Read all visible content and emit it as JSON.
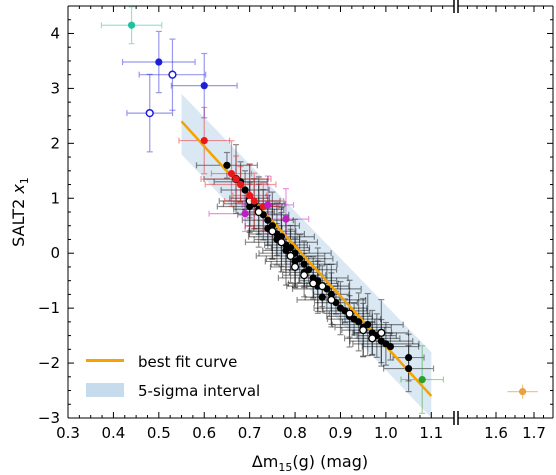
{
  "chart_data": {
    "type": "scatter",
    "xlabel": "Δm",
    "xlabel_sub": "15",
    "xlabel_rest": "(g) (mag)",
    "ylabel": "SALT2 ",
    "ylabel_var": "x",
    "ylabel_sub": "1",
    "xlim_main": [
      0.3,
      1.15
    ],
    "xlim_break": [
      1.5,
      1.75
    ],
    "ylim": [
      -3,
      4.5
    ],
    "x_ticks_main": [
      "0.3",
      "0.4",
      "0.5",
      "0.6",
      "0.7",
      "0.8",
      "0.9",
      "1.0",
      "1.1"
    ],
    "x_ticks_break": [
      "1.6",
      "1.7"
    ],
    "y_ticks": [
      "−3",
      "−2",
      "−1",
      "0",
      "1",
      "2",
      "3",
      "4"
    ],
    "legend_position": "lower-left",
    "fit_line": {
      "label": "best fit curve",
      "x": [
        0.55,
        1.1
      ],
      "y": [
        2.4,
        -2.6
      ],
      "color": "#f5a300"
    },
    "interval": {
      "label": "5-sigma interval",
      "color": "#c6dbec",
      "polygon": [
        [
          0.55,
          2.9
        ],
        [
          0.55,
          1.8
        ],
        [
          1.1,
          -3.0
        ],
        [
          1.1,
          -1.8
        ]
      ]
    },
    "series": [
      {
        "color": "#000000",
        "marker": "filled",
        "points": [
          [
            0.65,
            1.6
          ],
          [
            0.68,
            1.3
          ],
          [
            0.69,
            1.15
          ],
          [
            0.7,
            1.0
          ],
          [
            0.7,
            0.85
          ],
          [
            0.71,
            0.9
          ],
          [
            0.72,
            0.8
          ],
          [
            0.73,
            0.7
          ],
          [
            0.74,
            0.6
          ],
          [
            0.74,
            0.45
          ],
          [
            0.75,
            0.5
          ],
          [
            0.76,
            0.35
          ],
          [
            0.76,
            0.25
          ],
          [
            0.77,
            0.3
          ],
          [
            0.78,
            0.15
          ],
          [
            0.78,
            0.05
          ],
          [
            0.79,
            0.1
          ],
          [
            0.8,
            0.0
          ],
          [
            0.8,
            -0.15
          ],
          [
            0.81,
            -0.1
          ],
          [
            0.82,
            -0.2
          ],
          [
            0.82,
            -0.35
          ],
          [
            0.83,
            -0.3
          ],
          [
            0.84,
            -0.45
          ],
          [
            0.85,
            -0.5
          ],
          [
            0.85,
            -0.6
          ],
          [
            0.86,
            -0.8
          ],
          [
            0.87,
            -0.65
          ],
          [
            0.88,
            -0.75
          ],
          [
            0.89,
            -0.9
          ],
          [
            0.9,
            -1.0
          ],
          [
            0.91,
            -1.05
          ],
          [
            0.92,
            -1.15
          ],
          [
            0.93,
            -1.2
          ],
          [
            0.94,
            -1.25
          ],
          [
            0.95,
            -1.35
          ],
          [
            0.96,
            -1.3
          ],
          [
            0.97,
            -1.45
          ],
          [
            0.98,
            -1.5
          ],
          [
            0.99,
            -1.6
          ],
          [
            1.0,
            -1.65
          ],
          [
            1.01,
            -1.7
          ],
          [
            1.05,
            -1.9
          ],
          [
            1.05,
            -2.1
          ]
        ]
      },
      {
        "color": "#ffffff",
        "marker": "open-black",
        "points": [
          [
            0.67,
            1.35
          ],
          [
            0.7,
            0.95
          ],
          [
            0.72,
            0.75
          ],
          [
            0.75,
            0.4
          ],
          [
            0.77,
            0.2
          ],
          [
            0.79,
            -0.05
          ],
          [
            0.8,
            -0.25
          ],
          [
            0.82,
            -0.4
          ],
          [
            0.84,
            -0.55
          ],
          [
            0.86,
            -0.6
          ],
          [
            0.88,
            -0.85
          ],
          [
            0.92,
            -1.1
          ],
          [
            0.95,
            -1.4
          ],
          [
            0.97,
            -1.55
          ],
          [
            0.99,
            -1.45
          ]
        ]
      },
      {
        "color": "#e8191c",
        "marker": "filled",
        "points": [
          [
            0.6,
            2.05
          ],
          [
            0.66,
            1.45
          ],
          [
            0.67,
            1.35
          ],
          [
            0.68,
            1.25
          ],
          [
            0.7,
            1.05
          ],
          [
            0.71,
            0.95
          ],
          [
            0.73,
            0.85
          ]
        ]
      },
      {
        "color": "#c01ec0",
        "marker": "filled",
        "points": [
          [
            0.69,
            0.72
          ],
          [
            0.74,
            0.88
          ],
          [
            0.78,
            0.62
          ]
        ]
      },
      {
        "color": "#1e1ed8",
        "marker": "filled",
        "points": [
          [
            0.5,
            3.48
          ],
          [
            0.6,
            3.05
          ]
        ]
      },
      {
        "color": "#1e1ed8",
        "marker": "open-blue",
        "points": [
          [
            0.53,
            3.25
          ],
          [
            0.48,
            2.55
          ]
        ]
      },
      {
        "color": "#20c0a0",
        "marker": "filled",
        "points": [
          [
            0.44,
            4.15
          ]
        ]
      },
      {
        "color": "#2aa02a",
        "marker": "filled",
        "points": [
          [
            1.08,
            -2.3
          ]
        ]
      }
    ],
    "outlier_break": {
      "color": "#e8a33a",
      "points": [
        [
          1.67,
          -2.52
        ]
      ]
    }
  }
}
